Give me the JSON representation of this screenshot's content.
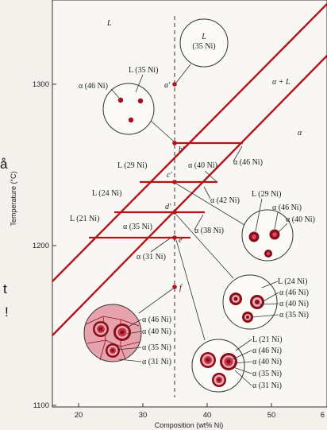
{
  "left_edge_glyphs": [
    "å",
    "t",
    "!"
  ],
  "axes": {
    "y_label": "Temperature (°C)",
    "x_label": "Composition (wt% Ni)",
    "y_ticks": [
      "1300",
      "1200",
      "1100"
    ],
    "x_ticks": [
      "20",
      "30",
      "40",
      "50",
      "6"
    ]
  },
  "regions": {
    "liquid": "L",
    "two_phase": "α + L",
    "solid": "α"
  },
  "points": {
    "a": "a′",
    "b": "b′",
    "c": "c′",
    "d": "d′",
    "e": "e′",
    "f": "f"
  },
  "tie_line_labels": {
    "b_right": "α (46 Ni)",
    "c_left": "L (29 Ni)",
    "c_right": "α (40 Ni)",
    "d_left": "L (24 Ni)",
    "d_right": "α (42 Ni)",
    "d_sub_right": "α (38 Ni)",
    "e_left": "L (21 Ni)",
    "e_mid": "α (35 Ni)",
    "e_below": "α (31 Ni)"
  },
  "microstructures": {
    "a": {
      "top": "L",
      "sub": "(35 Ni)"
    },
    "b": {
      "top": "L (35 Ni)",
      "left": "α (46 Ni)"
    },
    "c": {
      "labels": [
        "L (29 Ni)",
        "α (46 Ni)",
        "α (40 Ni)"
      ]
    },
    "d": {
      "labels": [
        "L (24 Ni)",
        "α (46 Ni)",
        "α (40 Ni)",
        "α (35 Ni)"
      ]
    },
    "e": {
      "labels": [
        "L (21 Ni)",
        "α (46 Ni)",
        "α (40 Ni)",
        "α (35 Ni)",
        "α (31 Ni)"
      ]
    },
    "f": {
      "labels": [
        "α (46 Ni)",
        "α (40 Ni)",
        "α (35 Ni)",
        "α (31 Ni)"
      ]
    }
  },
  "colors": {
    "phase_line": "#b3141a",
    "background": "#f4f1ec",
    "grain_dark": "#8a0d18",
    "grain_light": "#e7a9b3"
  }
}
